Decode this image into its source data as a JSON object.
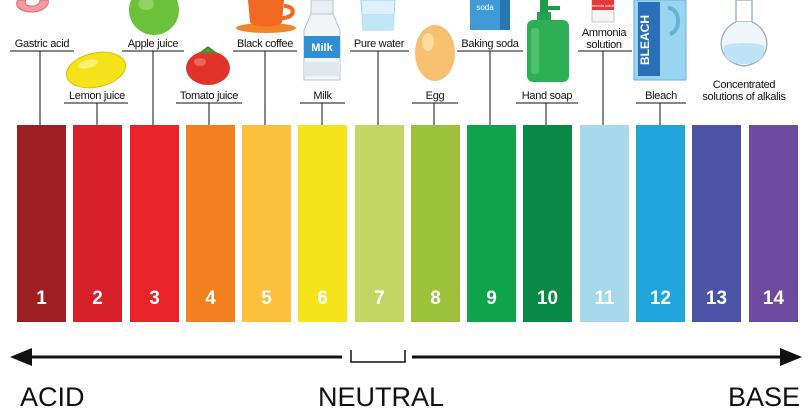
{
  "scale": {
    "numbers": [
      "1",
      "2",
      "3",
      "4",
      "5",
      "6",
      "7",
      "8",
      "9",
      "10",
      "11",
      "12",
      "13",
      "14"
    ],
    "colors": [
      "#9e1f22",
      "#d6202a",
      "#e8232a",
      "#f2801f",
      "#fbc13a",
      "#f5e41a",
      "#c3d663",
      "#9cc23c",
      "#0ea44a",
      "#088a45",
      "#a6d9ea",
      "#20a5da",
      "#4b53a6",
      "#6c4a9e"
    ]
  },
  "items": [
    {
      "key": "gastric",
      "label": "Gastric acid",
      "icon": "stomach-icon"
    },
    {
      "key": "lemon",
      "label": "Lemon juice",
      "icon": "lemon-icon"
    },
    {
      "key": "apple",
      "label": "Apple juice",
      "icon": "apple-icon"
    },
    {
      "key": "tomato",
      "label": "Tomato juice",
      "icon": "tomato-icon"
    },
    {
      "key": "coffee",
      "label": "Black coffee",
      "icon": "coffee-cup-icon"
    },
    {
      "key": "milk",
      "label": "Milk",
      "icon": "milk-bottle-icon",
      "bottle_text": "Milk"
    },
    {
      "key": "water",
      "label": "Pure water",
      "icon": "water-glass-icon"
    },
    {
      "key": "egg",
      "label": "Egg",
      "icon": "egg-icon"
    },
    {
      "key": "baking",
      "label": "Baking soda",
      "icon": "baking-soda-box-icon",
      "box_text": "soda"
    },
    {
      "key": "soap",
      "label": "Hand soap",
      "icon": "soap-dispenser-icon"
    },
    {
      "key": "ammonia",
      "label": "Ammonia solution",
      "icon": "ammonia-bottle-icon",
      "bottle_text": "Ammonia solution"
    },
    {
      "key": "bleach",
      "label": "Bleach",
      "icon": "bleach-bottle-icon",
      "bottle_text": "BLEACH"
    },
    {
      "key": "alkali",
      "label": "Concentrated solutions of alkalis",
      "icon": "flask-icon"
    }
  ],
  "axis": {
    "acid": "ACID",
    "neutral": "NEUTRAL",
    "base": "BASE"
  }
}
